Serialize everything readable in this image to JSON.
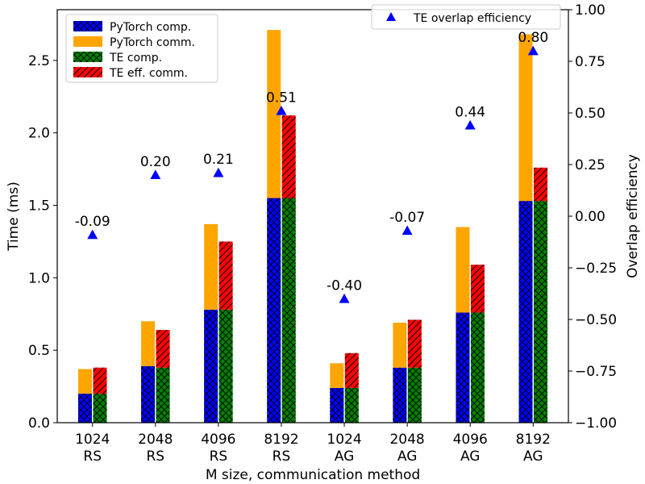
{
  "chart_data": {
    "type": "bar",
    "categories": [
      [
        "1024",
        "RS"
      ],
      [
        "2048",
        "RS"
      ],
      [
        "4096",
        "RS"
      ],
      [
        "8192",
        "RS"
      ],
      [
        "1024",
        "AG"
      ],
      [
        "2048",
        "AG"
      ],
      [
        "4096",
        "AG"
      ],
      [
        "8192",
        "AG"
      ]
    ],
    "xlabel": "M size, communication method",
    "ylabel": "Time (ms)",
    "y2label": "Overlap efficiency",
    "ylim": [
      0,
      2.85
    ],
    "y2lim": [
      -1.0,
      1.0
    ],
    "yticks": [
      "0.0",
      "0.5",
      "1.0",
      "1.5",
      "2.0",
      "2.5"
    ],
    "y2ticks": [
      "−1.00",
      "−0.75",
      "−0.50",
      "−0.25",
      "0.00",
      "0.25",
      "0.50",
      "0.75",
      "1.00"
    ],
    "grid": false,
    "series": [
      {
        "name": "PyTorch comp.",
        "color": "#0000ff",
        "hatch": "crosshatch",
        "stack": "pytorch",
        "values": [
          0.2,
          0.39,
          0.78,
          1.55,
          0.24,
          0.38,
          0.76,
          1.53
        ]
      },
      {
        "name": "PyTorch comm.",
        "color": "#ffa500",
        "hatch": "none",
        "stack": "pytorch",
        "values": [
          0.17,
          0.31,
          0.59,
          1.16,
          0.17,
          0.31,
          0.59,
          1.15
        ]
      },
      {
        "name": "TE comp.",
        "color": "#008000",
        "hatch": "crosshatch",
        "stack": "te",
        "values": [
          0.2,
          0.38,
          0.78,
          1.55,
          0.24,
          0.38,
          0.76,
          1.53
        ]
      },
      {
        "name": "TE eff. comm.",
        "color": "#ff0000",
        "hatch": "diagonal",
        "stack": "te",
        "values": [
          0.18,
          0.26,
          0.47,
          0.57,
          0.24,
          0.33,
          0.33,
          0.23
        ]
      }
    ],
    "efficiency": {
      "name": "TE overlap efficiency",
      "color": "#0000ff",
      "marker": "triangle",
      "values": [
        -0.09,
        0.2,
        0.21,
        0.51,
        -0.4,
        -0.07,
        0.44,
        0.8
      ],
      "labels": [
        "-0.09",
        "0.20",
        "0.21",
        "0.51",
        "-0.40",
        "-0.07",
        "0.44",
        "0.80"
      ]
    },
    "legend_position": "top-left",
    "legend2_position": "top-right"
  }
}
